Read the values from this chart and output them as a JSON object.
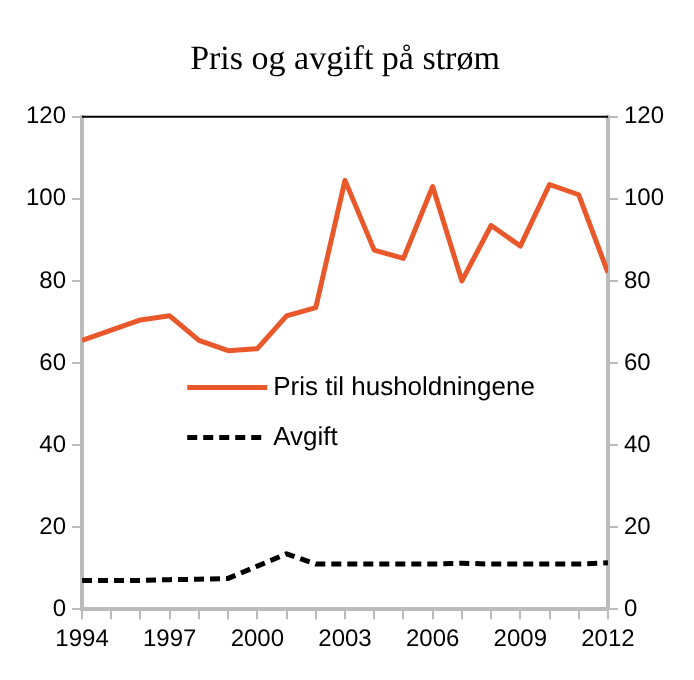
{
  "chart_data": {
    "type": "line",
    "title": "Pris og avgift på strøm",
    "x": [
      1994,
      1995,
      1996,
      1997,
      1998,
      1999,
      2000,
      2001,
      2002,
      2003,
      2004,
      2005,
      2006,
      2007,
      2008,
      2009,
      2010,
      2011,
      2012
    ],
    "series": [
      {
        "name": "Pris til husholdningene",
        "color": "#e8582a",
        "line_style": "solid",
        "values": [
          65.5,
          68,
          70.5,
          71.5,
          65.5,
          63,
          63.5,
          71.5,
          73.5,
          104.5,
          87.5,
          85.5,
          103,
          80,
          93.5,
          88.5,
          103.5,
          101,
          82
        ]
      },
      {
        "name": "Avgift",
        "color": "#000000",
        "line_style": "dashed",
        "values": [
          7,
          7,
          7,
          7.2,
          7.3,
          7.5,
          10.5,
          13.5,
          11,
          11,
          11,
          11,
          11,
          11.2,
          11,
          11,
          11,
          11,
          11.3
        ]
      }
    ],
    "xlim": [
      1994,
      2012
    ],
    "xticks": [
      1994,
      {
        "value": 1995,
        "label": null
      },
      {
        "value": 1996,
        "label": null
      },
      1997,
      {
        "value": 1998,
        "label": null
      },
      {
        "value": 1999,
        "label": null
      },
      2000,
      {
        "value": 2001,
        "label": null
      },
      {
        "value": 2002,
        "label": null
      },
      2003,
      {
        "value": 2004,
        "label": null
      },
      {
        "value": 2005,
        "label": null
      },
      2006,
      {
        "value": 2007,
        "label": null
      },
      {
        "value": 2008,
        "label": null
      },
      2009,
      {
        "value": 2010,
        "label": null
      },
      {
        "value": 2011,
        "label": null
      },
      2012
    ],
    "ylim": [
      0,
      120
    ],
    "yticks": [
      0,
      20,
      40,
      60,
      80,
      100,
      120
    ],
    "y2lim": [
      0,
      120
    ],
    "y2ticks": [
      0,
      20,
      40,
      60,
      80,
      100,
      120
    ],
    "grid": false,
    "legend": "center",
    "marker": "none"
  }
}
